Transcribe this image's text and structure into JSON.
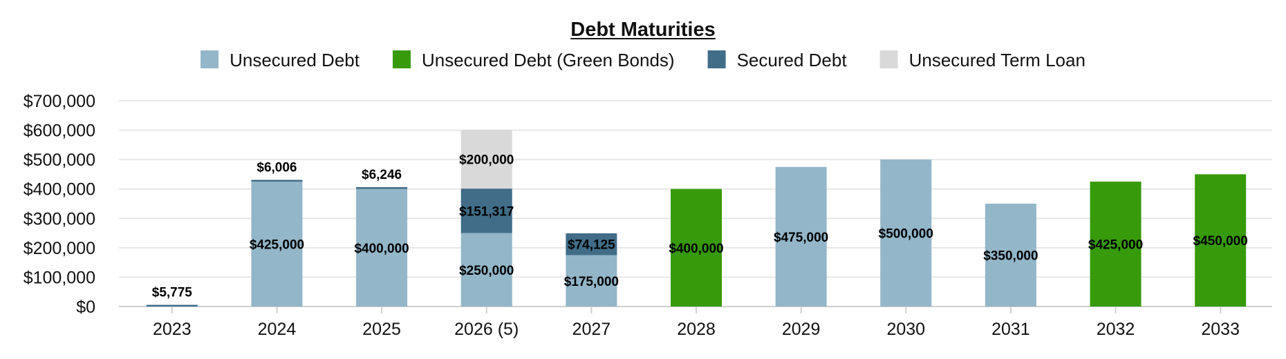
{
  "chart_data": {
    "type": "bar",
    "stacked": true,
    "title": "Debt Maturities",
    "xlabel": "",
    "ylabel": "",
    "ylim": [
      0,
      700000
    ],
    "yticks": [
      0,
      100000,
      200000,
      300000,
      400000,
      500000,
      600000,
      700000
    ],
    "ytick_labels": [
      "$0",
      "$100,000",
      "$200,000",
      "$300,000",
      "$400,000",
      "$500,000",
      "$600,000",
      "$700,000"
    ],
    "grid": true,
    "legend_position": "top",
    "categories": [
      "2023",
      "2024",
      "2025",
      "2026 (5)",
      "2027",
      "2028",
      "2029",
      "2030",
      "2031",
      "2032",
      "2033"
    ],
    "series": [
      {
        "name": "Unsecured Debt",
        "color": "#93b6c8",
        "values": [
          0,
          425000,
          400000,
          250000,
          175000,
          0,
          475000,
          500000,
          350000,
          0,
          0
        ],
        "labels": [
          "",
          "$425,000",
          "$400,000",
          "$250,000",
          "$175,000",
          "",
          "$475,000",
          "$500,000",
          "$350,000",
          "",
          ""
        ]
      },
      {
        "name": "Unsecured Debt (Green Bonds)",
        "color": "#369a0a",
        "values": [
          0,
          0,
          0,
          0,
          0,
          400000,
          0,
          0,
          0,
          425000,
          450000
        ],
        "labels": [
          "",
          "",
          "",
          "",
          "",
          "$400,000",
          "",
          "",
          "",
          "$425,000",
          "$450,000"
        ]
      },
      {
        "name": "Secured Debt",
        "color": "#416d88",
        "values": [
          5775,
          6006,
          6246,
          151317,
          74125,
          0,
          0,
          0,
          0,
          0,
          0
        ],
        "labels": [
          "$5,775",
          "$6,006",
          "$6,246",
          "$151,317",
          "$74,125",
          "",
          "",
          "",
          "",
          "",
          ""
        ]
      },
      {
        "name": "Unsecured Term Loan",
        "color": "#d9d9d9",
        "values": [
          0,
          0,
          0,
          200000,
          0,
          0,
          0,
          0,
          0,
          0,
          0
        ],
        "labels": [
          "",
          "",
          "",
          "$200,000",
          "",
          "",
          "",
          "",
          "",
          "",
          ""
        ]
      }
    ]
  }
}
